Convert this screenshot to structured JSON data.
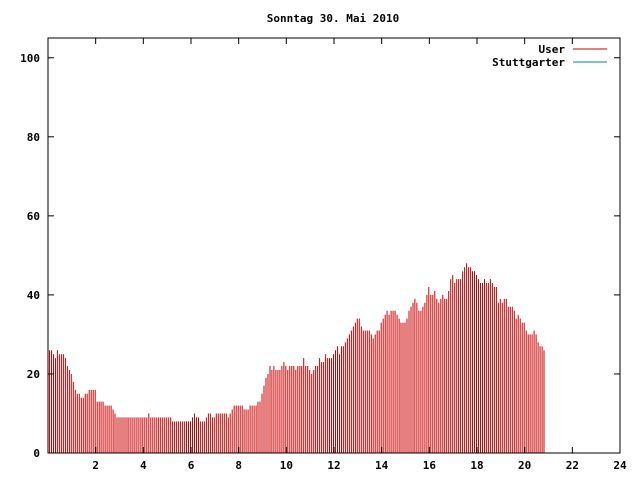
{
  "chart_data": {
    "type": "bar",
    "title": "Sonntag 30. Mai 2010",
    "xlabel": "",
    "ylabel": "",
    "xlim": [
      0,
      24
    ],
    "ylim": [
      0,
      105
    ],
    "x_ticks": [
      2,
      4,
      6,
      8,
      10,
      12,
      14,
      16,
      18,
      20,
      22,
      24
    ],
    "y_ticks": [
      0,
      20,
      40,
      60,
      80,
      100
    ],
    "grid": false,
    "legend_position": "top-right",
    "interval_minutes": 5,
    "series": [
      {
        "name": "User",
        "color": "#cc0000",
        "values": [
          26,
          26,
          25,
          24,
          26,
          25,
          25,
          25,
          24,
          22,
          21,
          20,
          18,
          16,
          15,
          15,
          14,
          14,
          15,
          15,
          16,
          16,
          16,
          16,
          13,
          13,
          13,
          13,
          12,
          12,
          12,
          12,
          11,
          10,
          9,
          9,
          9,
          9,
          9,
          9,
          9,
          9,
          9,
          9,
          9,
          9,
          9,
          9,
          9,
          9,
          10,
          9,
          9,
          9,
          9,
          9,
          9,
          9,
          9,
          9,
          9,
          9,
          8,
          8,
          8,
          8,
          8,
          8,
          8,
          8,
          8,
          8,
          9,
          10,
          9,
          9,
          8,
          8,
          8,
          9,
          10,
          10,
          9,
          9,
          10,
          10,
          10,
          10,
          10,
          10,
          9,
          10,
          11,
          12,
          12,
          12,
          12,
          12,
          11,
          11,
          11,
          12,
          12,
          12,
          12,
          13,
          13,
          15,
          17,
          19,
          20,
          22,
          21,
          22,
          21,
          21,
          21,
          22,
          23,
          22,
          21,
          22,
          22,
          22,
          21,
          22,
          22,
          22,
          24,
          22,
          22,
          21,
          20,
          21,
          22,
          22,
          24,
          23,
          23,
          25,
          24,
          24,
          24,
          25,
          26,
          27,
          25,
          27,
          27,
          28,
          29,
          30,
          31,
          32,
          33,
          34,
          34,
          32,
          31,
          31,
          31,
          31,
          30,
          29,
          30,
          31,
          31,
          33,
          34,
          35,
          36,
          35,
          36,
          36,
          36,
          35,
          34,
          33,
          33,
          33,
          34,
          36,
          37,
          38,
          39,
          38,
          36,
          36,
          37,
          38,
          40,
          42,
          40,
          40,
          41,
          39,
          38,
          39,
          40,
          39,
          39,
          41,
          44,
          45,
          43,
          44,
          44,
          44,
          46,
          47,
          48,
          47,
          47,
          46,
          46,
          45,
          44,
          43,
          43,
          44,
          43,
          43,
          44,
          43,
          42,
          42,
          38,
          39,
          38,
          39,
          39,
          37,
          37,
          37,
          36,
          34,
          35,
          34,
          33,
          33,
          31,
          30,
          30,
          30,
          31,
          30,
          28,
          27,
          27,
          26
        ]
      },
      {
        "name": "Stuttgarter",
        "color": "#008b8b",
        "values": []
      }
    ]
  }
}
